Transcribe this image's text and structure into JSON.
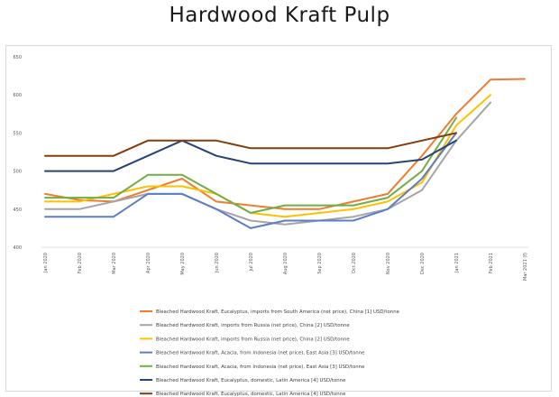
{
  "chart_data": {
    "type": "line",
    "title": "Hardwood Kraft Pulp",
    "xlabel": "",
    "ylabel": "",
    "ylim": [
      400,
      650
    ],
    "yticks": [
      400,
      450,
      500,
      550,
      600,
      650
    ],
    "grid": false,
    "legend_position": "bottom",
    "categories": [
      "Jan 2020",
      "Feb 2020",
      "Mar 2020",
      "Apr 2020",
      "May 2020",
      "Jun 2020",
      "Jul 2020",
      "Aug 2020",
      "Sep 2020",
      "Oct 2020",
      "Nov 2020",
      "Dec 2020",
      "Jan 2021",
      "Feb 2021",
      "Mar 2021 (f)"
    ],
    "series": [
      {
        "name": "Bleached Hardwood Kraft, Eucalyptus, imports from South America (net price),  China [1] USD/tonne",
        "color": "#ed7d31",
        "values": [
          470,
          462,
          460,
          475,
          490,
          460,
          455,
          450,
          450,
          460,
          470,
          520,
          575,
          620,
          621
        ]
      },
      {
        "name": "Bleached Hardwood Kraft, imports from Russia (net price),  China [2] USD/tonne",
        "color": "#a5a5a5",
        "values": [
          450,
          450,
          460,
          470,
          470,
          450,
          435,
          430,
          435,
          440,
          450,
          475,
          540,
          590,
          null
        ]
      },
      {
        "name": "Bleached Hardwood Kraft, imports from Russia (net price),  China [2] USD/tonne",
        "color": "#ffc000",
        "values": [
          460,
          460,
          470,
          480,
          480,
          470,
          445,
          440,
          445,
          450,
          460,
          485,
          560,
          600,
          null
        ]
      },
      {
        "name": "Bleached Hardwood Kraft, Acacia, from Indonesia (net price),  East Asia [3] USD/tonne",
        "color": "#5b7fc4",
        "values": [
          440,
          440,
          440,
          470,
          470,
          450,
          425,
          435,
          435,
          435,
          450,
          490,
          550,
          null,
          null
        ]
      },
      {
        "name": "Bleached Hardwood Kraft, Acacia, from Indonesia (net price),  East Asia [3] USD/tonne",
        "color": "#70ad47",
        "values": [
          465,
          465,
          465,
          495,
          495,
          470,
          445,
          455,
          455,
          455,
          465,
          500,
          570,
          null,
          null
        ]
      },
      {
        "name": "Bleached Hardwood Kraft, Eucalyptus, domestic,  Latin America [4] USD/tonne",
        "color": "#264478",
        "values": [
          500,
          500,
          500,
          520,
          540,
          520,
          510,
          510,
          510,
          510,
          510,
          515,
          540,
          null,
          null
        ]
      },
      {
        "name": "Bleached Hardwood Kraft, Eucalyptus, domestic,  Latin America [4] USD/tonne",
        "color": "#843c0c",
        "values": [
          520,
          520,
          520,
          540,
          540,
          540,
          530,
          530,
          530,
          530,
          530,
          540,
          550,
          null,
          null
        ]
      }
    ]
  }
}
